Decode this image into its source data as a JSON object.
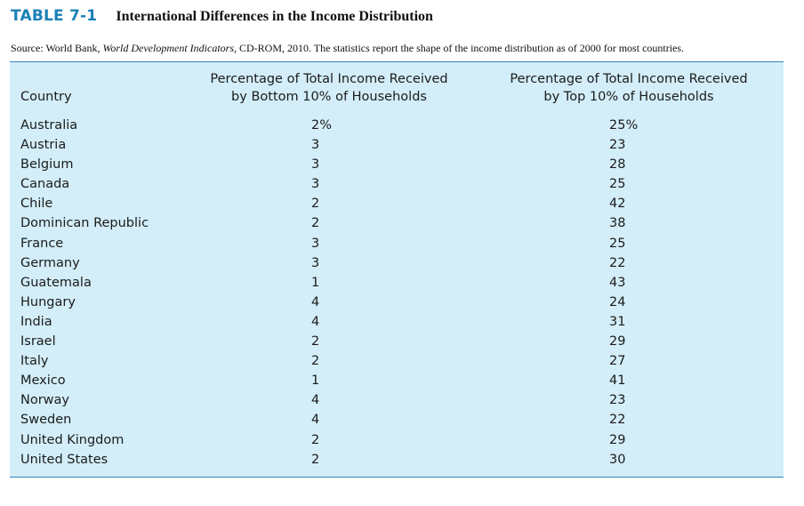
{
  "table": {
    "number": "TABLE 7-1",
    "title": "International Differences in the Income Distribution",
    "source_prefix": "Source: World Bank, ",
    "source_italic": "World Development Indicators,",
    "source_suffix": " CD-ROM, 2010. The statistics report the shape of the income distribution as of 2000 for most countries.",
    "headers": {
      "country": "Country",
      "bottom_line1": "Percentage of Total Income Received",
      "bottom_line2": "by Bottom 10% of Households",
      "top_line1": "Percentage of Total Income Received",
      "top_line2": "by Top 10% of Households"
    },
    "rows": [
      {
        "country": "Australia",
        "bottom": "2%",
        "top": "25%"
      },
      {
        "country": "Austria",
        "bottom": "3",
        "top": "23"
      },
      {
        "country": "Belgium",
        "bottom": "3",
        "top": "28"
      },
      {
        "country": "Canada",
        "bottom": "3",
        "top": "25"
      },
      {
        "country": "Chile",
        "bottom": "2",
        "top": "42"
      },
      {
        "country": "Dominican Republic",
        "bottom": "2",
        "top": "38"
      },
      {
        "country": "France",
        "bottom": "3",
        "top": "25"
      },
      {
        "country": "Germany",
        "bottom": "3",
        "top": "22"
      },
      {
        "country": "Guatemala",
        "bottom": "1",
        "top": "43"
      },
      {
        "country": "Hungary",
        "bottom": "4",
        "top": "24"
      },
      {
        "country": "India",
        "bottom": "4",
        "top": "31"
      },
      {
        "country": "Israel",
        "bottom": "2",
        "top": "29"
      },
      {
        "country": "Italy",
        "bottom": "2",
        "top": "27"
      },
      {
        "country": "Mexico",
        "bottom": "1",
        "top": "41"
      },
      {
        "country": "Norway",
        "bottom": "4",
        "top": "23"
      },
      {
        "country": "Sweden",
        "bottom": "4",
        "top": "22"
      },
      {
        "country": "United Kingdom",
        "bottom": "2",
        "top": "29"
      },
      {
        "country": "United States",
        "bottom": "2",
        "top": "30"
      }
    ]
  },
  "colors": {
    "accent": "#1a80b6",
    "panel_background": "#d3eef9",
    "rule": "#2e86bd"
  }
}
